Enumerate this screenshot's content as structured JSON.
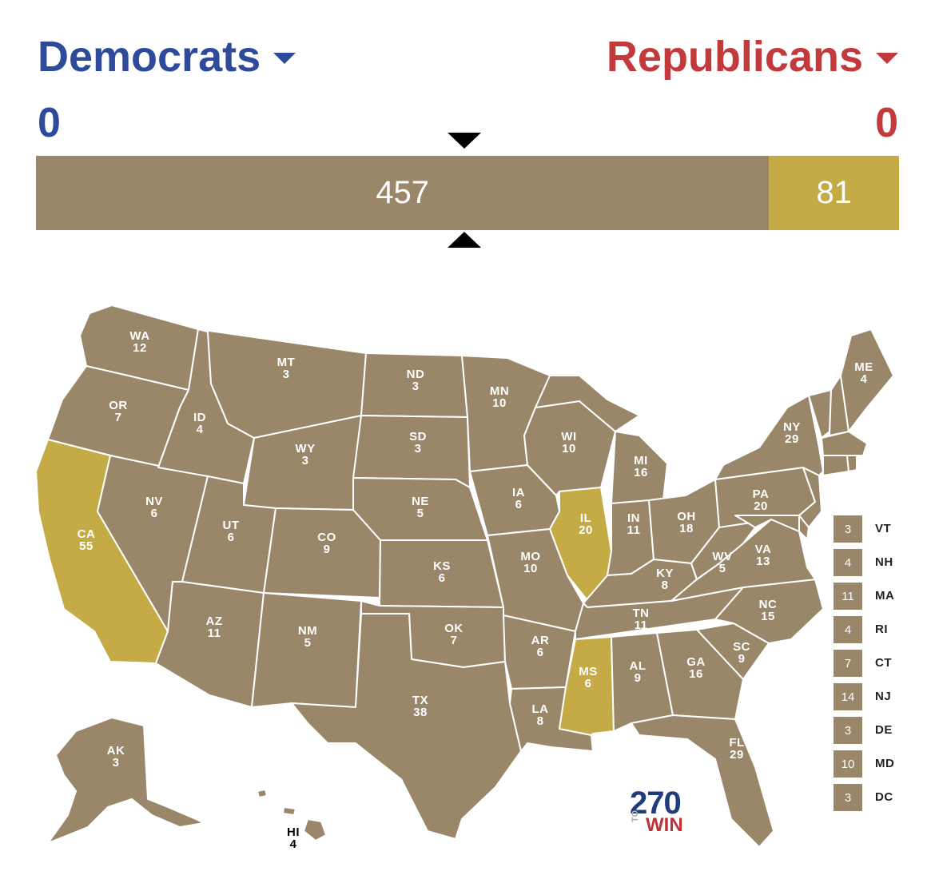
{
  "colors": {
    "dem": "#2e4a9a",
    "rep": "#c23a3c",
    "tossup": "#9a8769",
    "highlight": "#c5ab46",
    "border": "#ffffff"
  },
  "header": {
    "dem_label": "Democrats",
    "rep_label": "Republicans",
    "dem_count": "0",
    "rep_count": "0"
  },
  "tally": [
    {
      "label": "457",
      "value": 457,
      "status": "tossup"
    },
    {
      "label": "81",
      "value": 81,
      "status": "highlight"
    }
  ],
  "states": [
    {
      "abbr": "WA",
      "ev": "12",
      "status": "tossup"
    },
    {
      "abbr": "OR",
      "ev": "7",
      "status": "tossup"
    },
    {
      "abbr": "CA",
      "ev": "55",
      "status": "highlight"
    },
    {
      "abbr": "ID",
      "ev": "4",
      "status": "tossup"
    },
    {
      "abbr": "NV",
      "ev": "6",
      "status": "tossup"
    },
    {
      "abbr": "MT",
      "ev": "3",
      "status": "tossup"
    },
    {
      "abbr": "WY",
      "ev": "3",
      "status": "tossup"
    },
    {
      "abbr": "UT",
      "ev": "6",
      "status": "tossup"
    },
    {
      "abbr": "CO",
      "ev": "9",
      "status": "tossup"
    },
    {
      "abbr": "AZ",
      "ev": "11",
      "status": "tossup"
    },
    {
      "abbr": "NM",
      "ev": "5",
      "status": "tossup"
    },
    {
      "abbr": "ND",
      "ev": "3",
      "status": "tossup"
    },
    {
      "abbr": "SD",
      "ev": "3",
      "status": "tossup"
    },
    {
      "abbr": "NE",
      "ev": "5",
      "status": "tossup"
    },
    {
      "abbr": "KS",
      "ev": "6",
      "status": "tossup"
    },
    {
      "abbr": "OK",
      "ev": "7",
      "status": "tossup"
    },
    {
      "abbr": "TX",
      "ev": "38",
      "status": "tossup"
    },
    {
      "abbr": "MN",
      "ev": "10",
      "status": "tossup"
    },
    {
      "abbr": "IA",
      "ev": "6",
      "status": "tossup"
    },
    {
      "abbr": "MO",
      "ev": "10",
      "status": "tossup"
    },
    {
      "abbr": "AR",
      "ev": "6",
      "status": "tossup"
    },
    {
      "abbr": "LA",
      "ev": "8",
      "status": "tossup"
    },
    {
      "abbr": "WI",
      "ev": "10",
      "status": "tossup"
    },
    {
      "abbr": "IL",
      "ev": "20",
      "status": "highlight"
    },
    {
      "abbr": "MS",
      "ev": "6",
      "status": "highlight"
    },
    {
      "abbr": "MI",
      "ev": "16",
      "status": "tossup"
    },
    {
      "abbr": "IN",
      "ev": "11",
      "status": "tossup"
    },
    {
      "abbr": "OH",
      "ev": "18",
      "status": "tossup"
    },
    {
      "abbr": "KY",
      "ev": "8",
      "status": "tossup"
    },
    {
      "abbr": "TN",
      "ev": "11",
      "status": "tossup"
    },
    {
      "abbr": "AL",
      "ev": "9",
      "status": "tossup"
    },
    {
      "abbr": "GA",
      "ev": "16",
      "status": "tossup"
    },
    {
      "abbr": "FL",
      "ev": "29",
      "status": "tossup"
    },
    {
      "abbr": "SC",
      "ev": "9",
      "status": "tossup"
    },
    {
      "abbr": "NC",
      "ev": "15",
      "status": "tossup"
    },
    {
      "abbr": "VA",
      "ev": "13",
      "status": "tossup"
    },
    {
      "abbr": "WV",
      "ev": "5",
      "status": "tossup"
    },
    {
      "abbr": "PA",
      "ev": "20",
      "status": "tossup"
    },
    {
      "abbr": "NY",
      "ev": "29",
      "status": "tossup"
    },
    {
      "abbr": "ME",
      "ev": "4",
      "status": "tossup"
    },
    {
      "abbr": "AK",
      "ev": "3",
      "status": "tossup"
    },
    {
      "abbr": "HI",
      "ev": "4",
      "status": "tossup"
    }
  ],
  "small_states": [
    {
      "abbr": "VT",
      "ev": "3",
      "status": "tossup"
    },
    {
      "abbr": "NH",
      "ev": "4",
      "status": "tossup"
    },
    {
      "abbr": "MA",
      "ev": "11",
      "status": "tossup"
    },
    {
      "abbr": "RI",
      "ev": "4",
      "status": "tossup"
    },
    {
      "abbr": "CT",
      "ev": "7",
      "status": "tossup"
    },
    {
      "abbr": "NJ",
      "ev": "14",
      "status": "tossup"
    },
    {
      "abbr": "DE",
      "ev": "3",
      "status": "tossup"
    },
    {
      "abbr": "MD",
      "ev": "10",
      "status": "tossup"
    },
    {
      "abbr": "DC",
      "ev": "3",
      "status": "tossup"
    }
  ],
  "logo": {
    "number": "270",
    "to": "TO",
    "win": "WIN"
  }
}
